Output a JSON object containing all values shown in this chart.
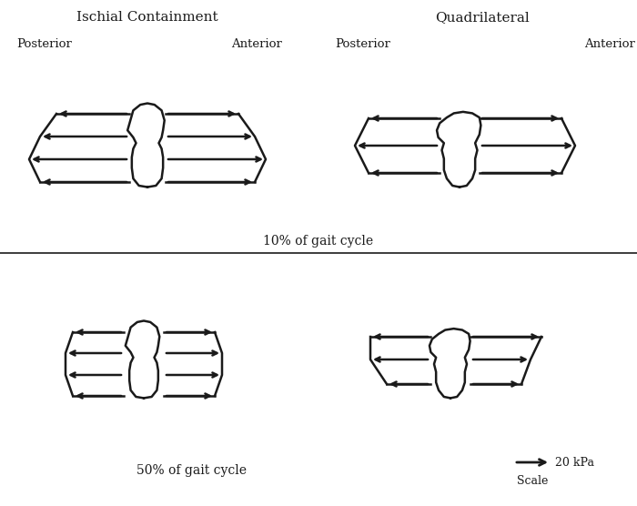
{
  "title_left": "Ischial Containment",
  "title_right": "Quadrilateral",
  "label_posterior": "Posterior",
  "label_anterior": "Anterior",
  "caption_top": "10% of gait cycle",
  "caption_bottom": "50% of gait cycle",
  "scale_label": "20 kPa",
  "scale_sub": "Scale",
  "bg_color": "#ffffff",
  "line_color": "#1a1a1a",
  "fig_width": 7.0,
  "fig_height": 5.56,
  "dpi": 100
}
